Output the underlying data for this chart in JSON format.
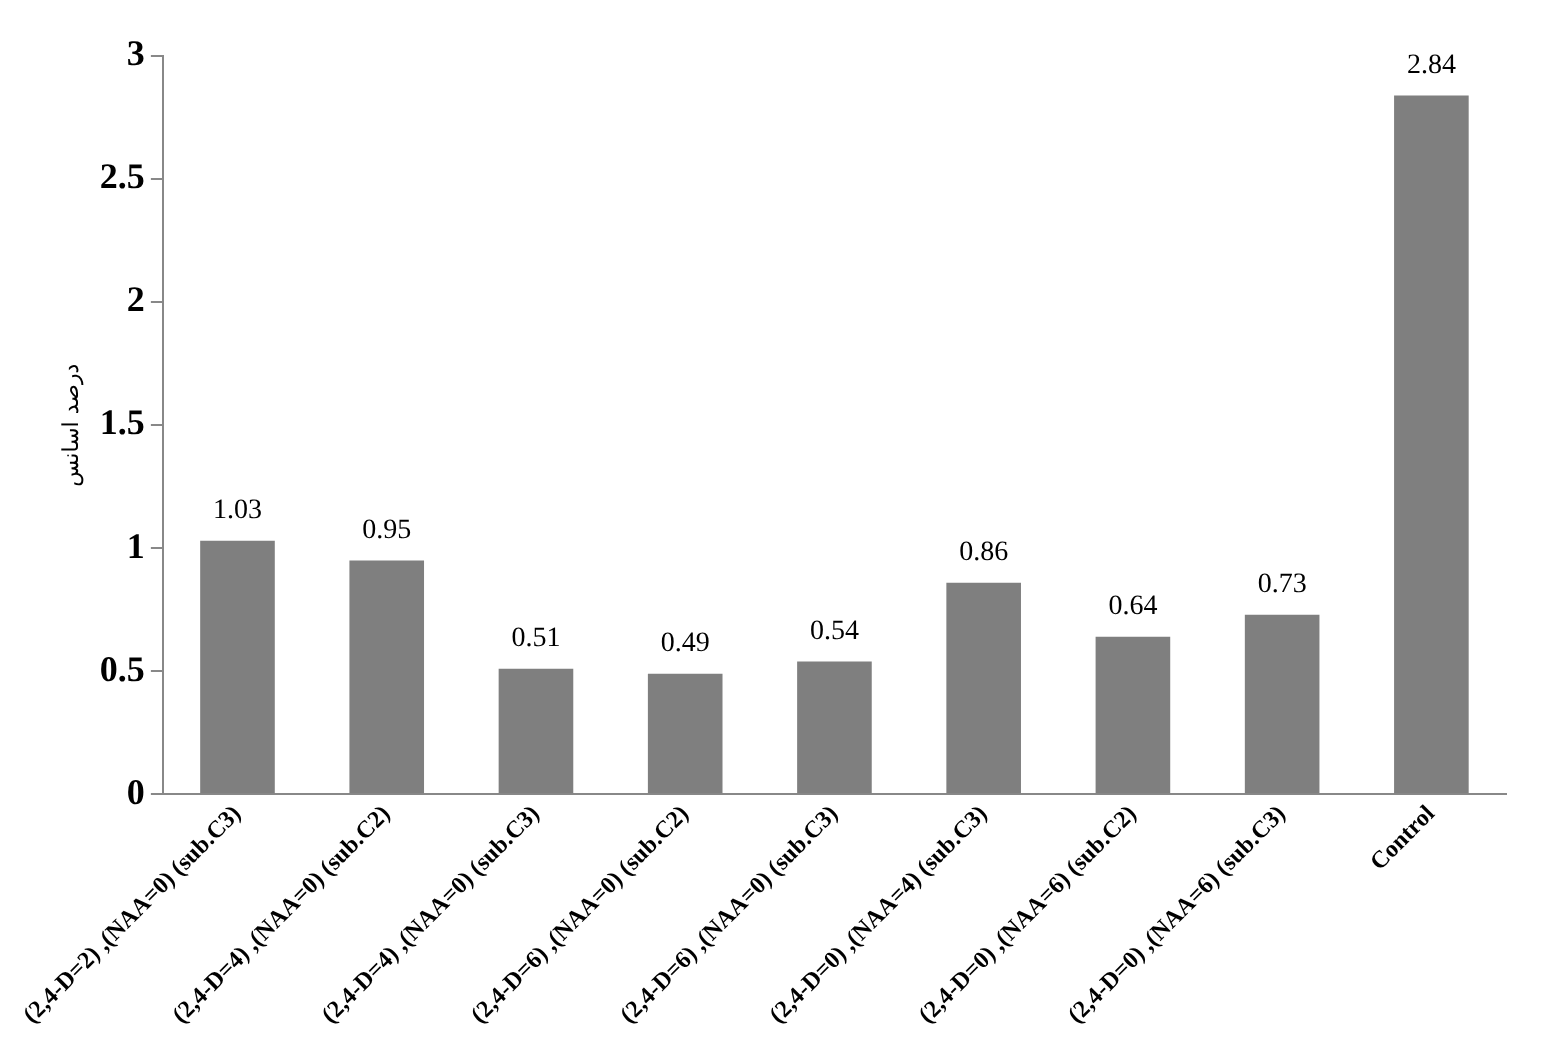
{
  "chart_data": {
    "type": "bar",
    "ylabel": "درصد اسانس",
    "categories": [
      "(2,4-D=2) ,(NAA=0) (sub.C3)",
      "(2,4-D=4) ,(NAA=0) (sub.C2)",
      "(2,4-D=4) ,(NAA=0) (sub.C3)",
      "(2,4-D=6) ,(NAA=0) (sub.C2)",
      "(2,4-D=6) ,(NAA=0) (sub.C3)",
      "(2,4-D=0) ,(NAA=4) (sub.C3)",
      "(2,4-D=0) ,(NAA=6) (sub.C2)",
      "(2,4-D=0) ,(NAA=6) (sub.C3)",
      "Control"
    ],
    "values": [
      1.03,
      0.95,
      0.51,
      0.49,
      0.54,
      0.86,
      0.64,
      0.73,
      2.84
    ],
    "color": "#7f7f7f",
    "ylim": [
      0,
      3
    ],
    "yticks": [
      0,
      0.5,
      1,
      1.5,
      2,
      2.5,
      3
    ],
    "data_labels": true,
    "grid": false,
    "legend": false
  }
}
